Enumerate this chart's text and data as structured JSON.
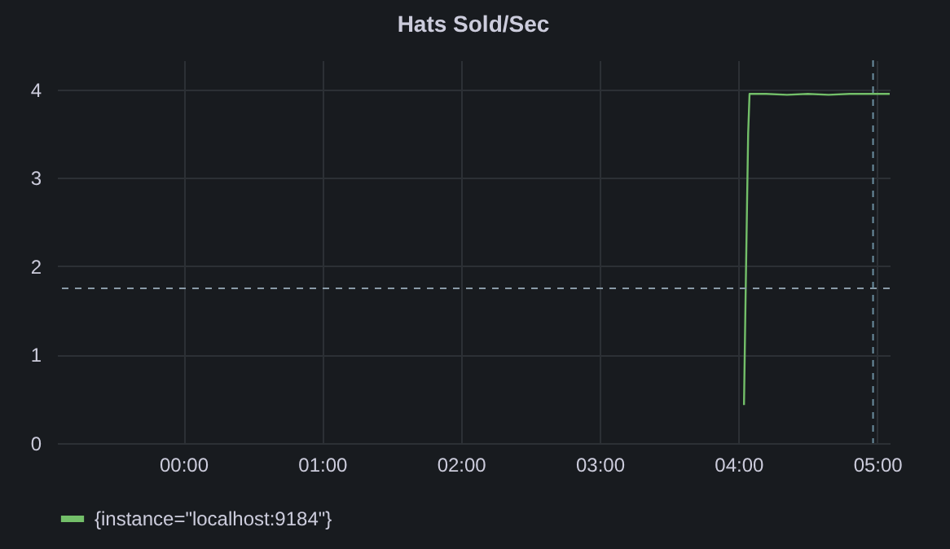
{
  "chart_data": {
    "type": "line",
    "title": "Hats Sold/Sec",
    "x": [
      4.04,
      4.05,
      4.06,
      4.07,
      4.08,
      4.2,
      4.35,
      4.5,
      4.65,
      4.8,
      4.97,
      5.09
    ],
    "series": [
      {
        "name": "{instance=\"localhost:9184\"}",
        "color": "#73bf69",
        "values": [
          0.43,
          1.5,
          2.5,
          3.5,
          3.95,
          3.95,
          3.94,
          3.95,
          3.94,
          3.95,
          3.95,
          3.95
        ]
      }
    ],
    "xlim": [
      -0.91,
      5.09
    ],
    "xticks": [
      {
        "value": 0,
        "label": "00:00"
      },
      {
        "value": 1,
        "label": "01:00"
      },
      {
        "value": 2,
        "label": "02:00"
      },
      {
        "value": 3,
        "label": "03:00"
      },
      {
        "value": 4,
        "label": "04:00"
      },
      {
        "value": 5,
        "label": "05:00"
      }
    ],
    "ylim": [
      0,
      4.33
    ],
    "yticks": [
      0,
      1,
      2,
      3,
      4
    ],
    "ref_lines": [
      {
        "axis": "y",
        "value": 1.75,
        "color": "#8a9ba8",
        "line_style": "dashed"
      },
      {
        "axis": "x",
        "value": 4.97,
        "color": "#6c8fa0",
        "line_style": "dashed"
      }
    ],
    "grid": true,
    "legend": "bottom",
    "marker": "none",
    "line_style": "solid"
  }
}
